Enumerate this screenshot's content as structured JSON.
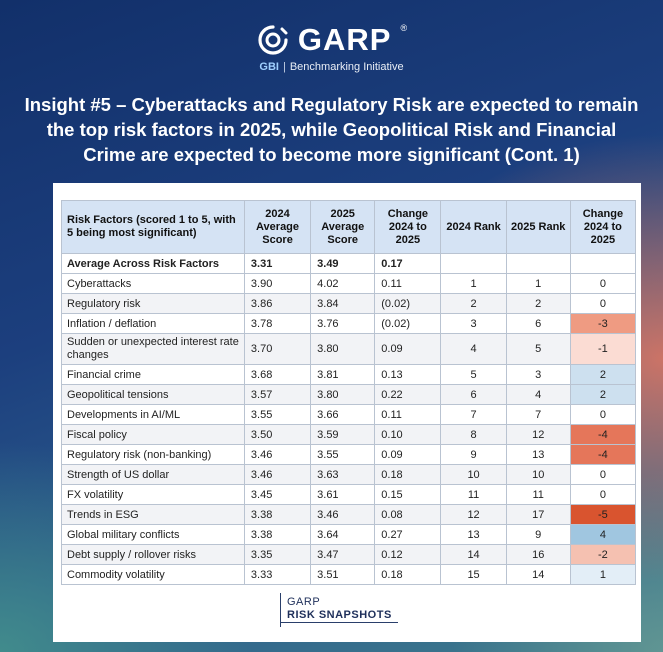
{
  "brand": {
    "name": "GARP",
    "registered": "®",
    "sub_prefix": "GBI",
    "sub_separator": "|",
    "sub_text": "Benchmarking Initiative"
  },
  "headline": "Insight #5 – Cyberattacks and Regulatory Risk are expected to remain the top risk factors in 2025, while Geopolitical Risk and Financial Crime are expected to become more significant (Cont. 1)",
  "table": {
    "headers": {
      "risk_factor": "Risk Factors (scored 1 to 5, with 5 being most significant)",
      "avg_2024": "2024 Average Score",
      "avg_2025": "2025 Average Score",
      "change_score": "Change 2024 to 2025",
      "rank_2024": "2024 Rank",
      "rank_2025": "2025 Rank",
      "change_rank": "Change 2024 to 2025"
    },
    "average_row": {
      "name": "Average Across Risk Factors",
      "avg_2024": "3.31",
      "avg_2025": "3.49",
      "change": "0.17"
    },
    "rows": [
      {
        "name": "Cyberattacks",
        "avg_2024": "3.90",
        "avg_2025": "4.02",
        "change": "0.11",
        "rank_2024": "1",
        "rank_2025": "1",
        "rank_change": "0",
        "heat": "#ffffff"
      },
      {
        "name": "Regulatory risk",
        "avg_2024": "3.86",
        "avg_2025": "3.84",
        "change": "(0.02)",
        "rank_2024": "2",
        "rank_2025": "2",
        "rank_change": "0",
        "heat": "#ffffff"
      },
      {
        "name": "Inflation / deflation",
        "avg_2024": "3.78",
        "avg_2025": "3.76",
        "change": "(0.02)",
        "rank_2024": "3",
        "rank_2025": "6",
        "rank_change": "-3",
        "heat": "#ef9b82"
      },
      {
        "name": "Sudden or unexpected interest rate changes",
        "avg_2024": "3.70",
        "avg_2025": "3.80",
        "change": "0.09",
        "rank_2024": "4",
        "rank_2025": "5",
        "rank_change": "-1",
        "heat": "#fbdcd3",
        "tall": true
      },
      {
        "name": "Financial crime",
        "avg_2024": "3.68",
        "avg_2025": "3.81",
        "change": "0.13",
        "rank_2024": "5",
        "rank_2025": "3",
        "rank_change": "2",
        "heat": "#cde0ef"
      },
      {
        "name": "Geopolitical tensions",
        "avg_2024": "3.57",
        "avg_2025": "3.80",
        "change": "0.22",
        "rank_2024": "6",
        "rank_2025": "4",
        "rank_change": "2",
        "heat": "#cde0ef"
      },
      {
        "name": "Developments in AI/ML",
        "avg_2024": "3.55",
        "avg_2025": "3.66",
        "change": "0.11",
        "rank_2024": "7",
        "rank_2025": "7",
        "rank_change": "0",
        "heat": "#ffffff"
      },
      {
        "name": "Fiscal policy",
        "avg_2024": "3.50",
        "avg_2025": "3.59",
        "change": "0.10",
        "rank_2024": "8",
        "rank_2025": "12",
        "rank_change": "-4",
        "heat": "#e5765a"
      },
      {
        "name": "Regulatory risk (non-banking)",
        "avg_2024": "3.46",
        "avg_2025": "3.55",
        "change": "0.09",
        "rank_2024": "9",
        "rank_2025": "13",
        "rank_change": "-4",
        "heat": "#e5765a"
      },
      {
        "name": "Strength of US dollar",
        "avg_2024": "3.46",
        "avg_2025": "3.63",
        "change": "0.18",
        "rank_2024": "10",
        "rank_2025": "10",
        "rank_change": "0",
        "heat": "#ffffff"
      },
      {
        "name": "FX volatility",
        "avg_2024": "3.45",
        "avg_2025": "3.61",
        "change": "0.15",
        "rank_2024": "11",
        "rank_2025": "11",
        "rank_change": "0",
        "heat": "#ffffff"
      },
      {
        "name": "Trends in ESG",
        "avg_2024": "3.38",
        "avg_2025": "3.46",
        "change": "0.08",
        "rank_2024": "12",
        "rank_2025": "17",
        "rank_change": "-5",
        "heat": "#d9542f"
      },
      {
        "name": "Global military conflicts",
        "avg_2024": "3.38",
        "avg_2025": "3.64",
        "change": "0.27",
        "rank_2024": "13",
        "rank_2025": "9",
        "rank_change": "4",
        "heat": "#a0c6e0"
      },
      {
        "name": "Debt supply / rollover risks",
        "avg_2024": "3.35",
        "avg_2025": "3.47",
        "change": "0.12",
        "rank_2024": "14",
        "rank_2025": "16",
        "rank_change": "-2",
        "heat": "#f5c1b1"
      },
      {
        "name": "Commodity volatility",
        "avg_2024": "3.33",
        "avg_2025": "3.51",
        "change": "0.18",
        "rank_2024": "15",
        "rank_2025": "14",
        "rank_change": "1",
        "heat": "#e3eef7"
      }
    ]
  },
  "footer": {
    "line1": "GARP",
    "line2": "RISK SNAPSHOTS"
  }
}
